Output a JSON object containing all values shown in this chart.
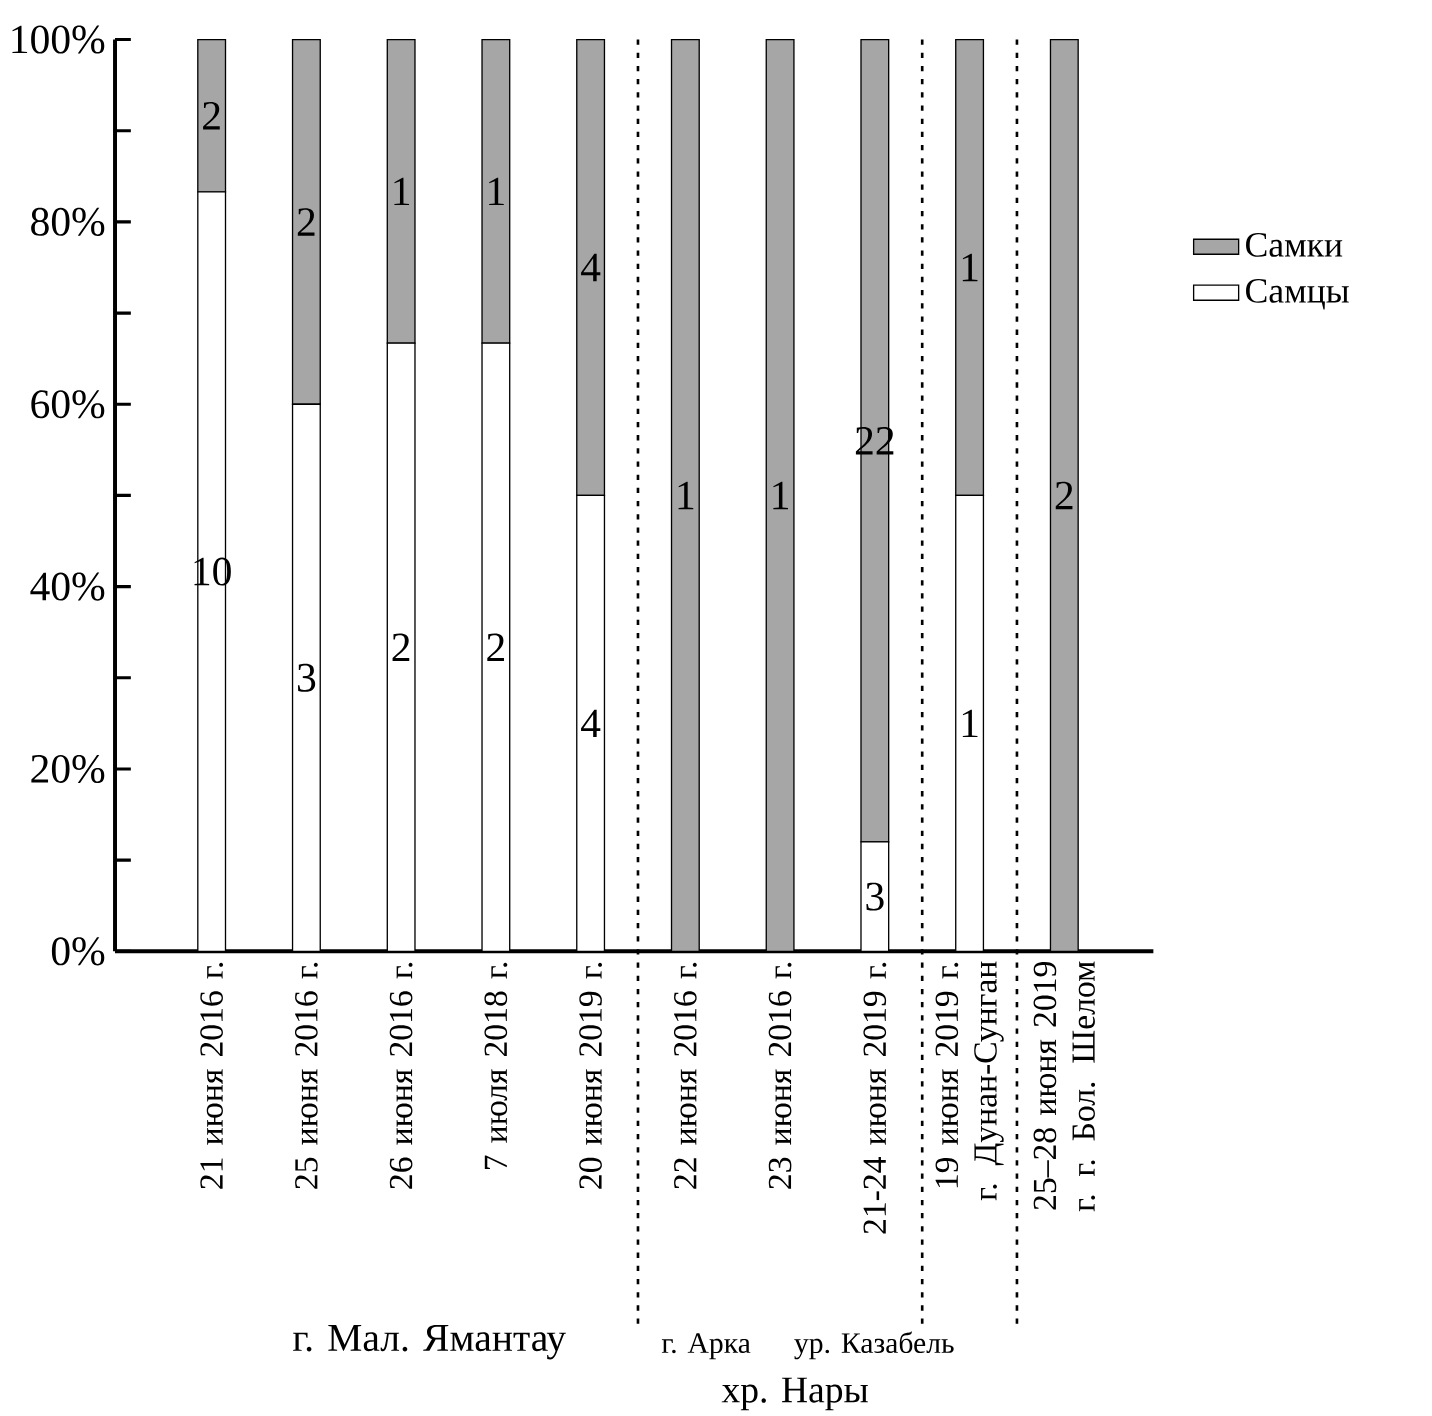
{
  "chart_data": {
    "type": "bar",
    "stacked": true,
    "legend": "right",
    "categories": [
      "21 июня 2016 г.",
      "25 июня 2016 г.",
      "26 июня 2016 г.",
      "7 июля 2018 г.",
      "20 июня 2019 г.",
      "22 июня 2016 г.",
      "23 июня 2016 г.",
      "21-24 июня 2019 г.",
      "19 июня 2019 г. г. Дунан-Сунган",
      "25–28 июня 2019 г. г. Бол. Шелом"
    ],
    "series": [
      {
        "name": "Самцы",
        "color": "#ffffff",
        "values": [
          83.3,
          60,
          66.7,
          66.7,
          50,
          0,
          0,
          12,
          50,
          0
        ]
      },
      {
        "name": "Самки",
        "color": "#a6a6a6",
        "values": [
          16.7,
          40,
          33.3,
          33.3,
          50,
          100,
          100,
          88,
          50,
          100
        ]
      }
    ],
    "ylim": [
      0,
      100
    ],
    "yticks": [
      {
        "value": 0,
        "label": "0%"
      },
      {
        "value": 10,
        "label": null
      },
      {
        "value": 20,
        "label": "20%"
      },
      {
        "value": 30,
        "label": null
      },
      {
        "value": 40,
        "label": "40%"
      },
      {
        "value": 50,
        "label": null
      },
      {
        "value": 60,
        "label": "60%"
      },
      {
        "value": 70,
        "label": null
      },
      {
        "value": 80,
        "label": "80%"
      },
      {
        "value": 90,
        "label": null
      },
      {
        "value": 100,
        "label": "100%"
      }
    ],
    "annotations": [
      "г. Мал. Ямантау",
      "г. Арка",
      "ур. Казабель",
      "хр. Нары",
      "10",
      "2",
      "3",
      "2",
      "2",
      "1",
      "2",
      "1",
      "4",
      "4",
      "1",
      "1",
      "3",
      "22",
      "1",
      "1",
      "2"
    ]
  }
}
